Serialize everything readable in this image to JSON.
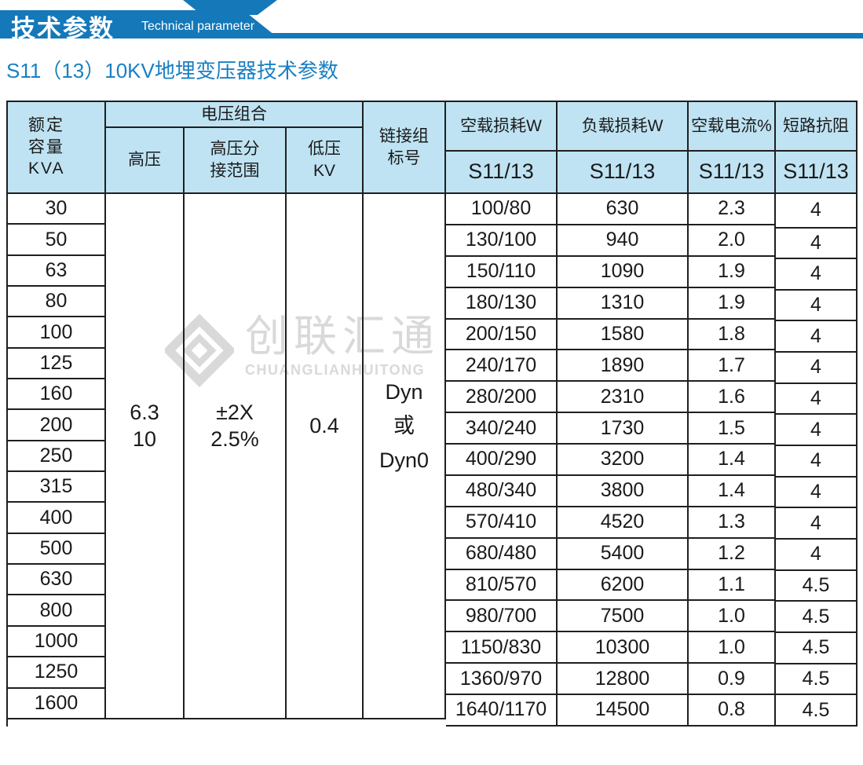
{
  "banner": {
    "title_cn": "技术参数",
    "title_en": "Technical parameter"
  },
  "subtitle": "S11（13）10KV地埋变压器技术参数",
  "watermark": {
    "cn": "创联汇通",
    "en": "CHUANGLIANHUITONG"
  },
  "colors": {
    "banner_blue": "#1478b9",
    "subtitle_blue": "#1a80c3",
    "header_bg": "#bfe3f3",
    "border_dark": "#1f1f1f",
    "watermark_gray": "#d9d9d9",
    "text": "#1a1a1a"
  },
  "table": {
    "headers": {
      "capacity": "额定\n容量\nKVA",
      "voltage_group": "电压组合",
      "high_voltage": "高压",
      "tap_range": "高压分\n接范围",
      "low_voltage": "低压\nKV",
      "connection": "链接组\n标号",
      "no_load_loss": "空载损耗W",
      "load_loss": "负载损耗W",
      "no_load_current": "空载电流%",
      "impedance": "短路抗阻",
      "model_sub": "S11/13"
    },
    "merged": {
      "high_voltage": "6.3\n10",
      "tap_range": "±2X\n2.5%",
      "low_voltage": "0.4",
      "connection": "Dyn\n或\nDyn0"
    },
    "rows": [
      {
        "kva": "30",
        "no_load_loss": "100/80",
        "load_loss": "630",
        "no_load_current": "2.3",
        "impedance": "4"
      },
      {
        "kva": "50",
        "no_load_loss": "130/100",
        "load_loss": "940",
        "no_load_current": "2.0",
        "impedance": "4"
      },
      {
        "kva": "63",
        "no_load_loss": "150/110",
        "load_loss": "1090",
        "no_load_current": "1.9",
        "impedance": "4"
      },
      {
        "kva": "80",
        "no_load_loss": "180/130",
        "load_loss": "1310",
        "no_load_current": "1.9",
        "impedance": "4"
      },
      {
        "kva": "100",
        "no_load_loss": "200/150",
        "load_loss": "1580",
        "no_load_current": "1.8",
        "impedance": "4"
      },
      {
        "kva": "125",
        "no_load_loss": "240/170",
        "load_loss": "1890",
        "no_load_current": "1.7",
        "impedance": "4"
      },
      {
        "kva": "160",
        "no_load_loss": "280/200",
        "load_loss": "2310",
        "no_load_current": "1.6",
        "impedance": "4"
      },
      {
        "kva": "200",
        "no_load_loss": "340/240",
        "load_loss": "1730",
        "no_load_current": "1.5",
        "impedance": "4"
      },
      {
        "kva": "250",
        "no_load_loss": "400/290",
        "load_loss": "3200",
        "no_load_current": "1.4",
        "impedance": "4"
      },
      {
        "kva": "315",
        "no_load_loss": "480/340",
        "load_loss": "3800",
        "no_load_current": "1.4",
        "impedance": "4"
      },
      {
        "kva": "400",
        "no_load_loss": "570/410",
        "load_loss": "4520",
        "no_load_current": "1.3",
        "impedance": "4"
      },
      {
        "kva": "500",
        "no_load_loss": "680/480",
        "load_loss": "5400",
        "no_load_current": "1.2",
        "impedance": "4"
      },
      {
        "kva": "630",
        "no_load_loss": "810/570",
        "load_loss": "6200",
        "no_load_current": "1.1",
        "impedance": "4.5"
      },
      {
        "kva": "800",
        "no_load_loss": "980/700",
        "load_loss": "7500",
        "no_load_current": "1.0",
        "impedance": "4.5"
      },
      {
        "kva": "1000",
        "no_load_loss": "1150/830",
        "load_loss": "10300",
        "no_load_current": "1.0",
        "impedance": "4.5"
      },
      {
        "kva": "1250",
        "no_load_loss": "1360/970",
        "load_loss": "12800",
        "no_load_current": "0.9",
        "impedance": "4.5"
      },
      {
        "kva": "1600",
        "no_load_loss": "1640/1170",
        "load_loss": "14500",
        "no_load_current": "0.8",
        "impedance": "4.5"
      }
    ]
  }
}
